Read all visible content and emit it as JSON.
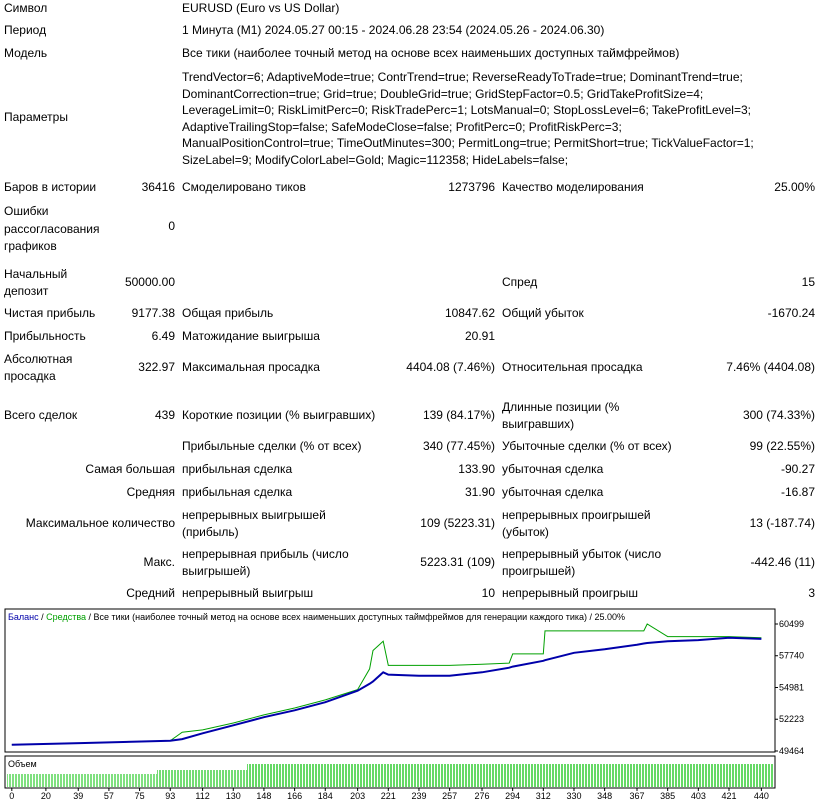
{
  "report": {
    "symbol": [
      "Символ",
      "EURUSD (Euro vs US Dollar)"
    ],
    "period": [
      "Период",
      "1 Минута (M1) 2024.05.27 00:15 - 2024.06.28 23:54 (2024.05.26 - 2024.06.30)"
    ],
    "model": [
      "Модель",
      "Все тики (наиболее точный метод на основе всех наименьших доступных таймфреймов)"
    ],
    "parameters": {
      "label": "Параметры",
      "lines": [
        "TrendVector=6; AdaptiveMode=true; ContrTrend=true; ReverseReadyToTrade=true; DominantTrend=true;",
        "DominantCorrection=true; Grid=true; DoubleGrid=true; GridStepFactor=0.5; GridTakeProfitSize=4;",
        "LeverageLimit=0; RiskLimitPerc=0; RiskTradePerc=1; LotsManual=0; StopLossLevel=6; TakeProfitLevel=3;",
        "AdaptiveTrailingStop=false; SafeModeClose=false; ProfitPerc=0; ProfitRiskPerc=3;",
        "ManualPositionControl=true; TimeOutMinutes=300; PermitLong=true; PermitShort=true; TickValueFactor=1;",
        "SizeLabel=9; ModifyColorLabel=Gold; Magic=112358; HideLabels=false;"
      ]
    },
    "rows": [
      [
        "Баров в истории",
        "36416",
        "Смоделировано тиков",
        "1273796",
        "Качество моделирования",
        "25.00%"
      ],
      [
        "Ошибки рассогласования графиков",
        "0"
      ],
      [
        "Начальный депозит",
        "50000.00",
        "Спред",
        "15"
      ],
      [
        "Чистая прибыль",
        "9177.38",
        "Общая прибыль",
        "10847.62",
        "Общий убыток",
        "-1670.24"
      ],
      [
        "Прибыльность",
        "6.49",
        "Матожидание выигрыша",
        "20.91"
      ],
      [
        "Абсолютная просадка",
        "322.97",
        "Максимальная просадка",
        "4404.08 (7.46%)",
        "Относительная просадка",
        "7.46% (4404.08)"
      ],
      [
        "Всего сделок",
        "439",
        "Короткие позиции (% выигравших)",
        "139 (84.17%)",
        "Длинные позиции (% выигравших)",
        "300 (74.33%)"
      ],
      [
        "Прибыльные сделки (% от всех)",
        "340 (77.45%)",
        "Убыточные сделки (% от всех)",
        "99 (22.55%)"
      ],
      [
        "Самая большая",
        "прибыльная сделка",
        "133.90",
        "убыточная сделка",
        "-90.27"
      ],
      [
        "Средняя",
        "прибыльная сделка",
        "31.90",
        "убыточная сделка",
        "-16.87"
      ],
      [
        "Максимальное количество",
        "непрерывных выигрышей (прибыль)",
        "109 (5223.31)",
        "непрерывных проигрышей (убыток)",
        "13 (-187.74)"
      ],
      [
        "Макс.",
        "непрерывная прибыль (число выигрышей)",
        "5223.31 (109)",
        "непрерывный убыток (число проигрышей)",
        "-442.46 (11)"
      ],
      [
        "Средний",
        "непрерывный выигрыш",
        "10",
        "непрерывный проигрыш",
        "3"
      ]
    ]
  },
  "chart_data": {
    "type": "line",
    "subtitle": "Все тики (наиболее точный метод на основе всех наименьших доступных таймфреймов для генерации каждого тика)",
    "separator": " / ",
    "quality": "25.00%",
    "volume_label": "Объем",
    "x": [
      0,
      40,
      93,
      100,
      112,
      130,
      148,
      166,
      184,
      203,
      210,
      212,
      218,
      221,
      239,
      257,
      276,
      292,
      294,
      312,
      313,
      330,
      348,
      367,
      371,
      373,
      385,
      403,
      421,
      440
    ],
    "series": [
      {
        "name": "Баланс",
        "color": "#0000aa",
        "values": [
          50000,
          50150,
          50350,
          50500,
          51000,
          51700,
          52400,
          53000,
          53700,
          54700,
          55300,
          55500,
          56300,
          56100,
          56000,
          56000,
          56300,
          56700,
          56800,
          57300,
          57350,
          58000,
          58300,
          58700,
          58800,
          58850,
          59000,
          59100,
          59300,
          59200
        ]
      },
      {
        "name": "Средства",
        "color": "#00a000",
        "values": [
          50000,
          50150,
          50350,
          51100,
          51300,
          51900,
          52600,
          53200,
          53900,
          54800,
          56600,
          58200,
          59000,
          56900,
          56900,
          56900,
          57000,
          57100,
          57900,
          57900,
          59900,
          59900,
          59900,
          59900,
          59900,
          60500,
          59400,
          59400,
          59400,
          59300
        ]
      }
    ],
    "xlim": [
      -4,
      448
    ],
    "ylim": [
      49377,
      61715
    ],
    "xticks": [
      0,
      20,
      39,
      57,
      75,
      93,
      112,
      130,
      148,
      166,
      184,
      203,
      221,
      239,
      257,
      276,
      294,
      312,
      330,
      348,
      367,
      385,
      403,
      421,
      440
    ],
    "yticks": [
      49464,
      52223,
      54981,
      57740,
      60499
    ]
  }
}
